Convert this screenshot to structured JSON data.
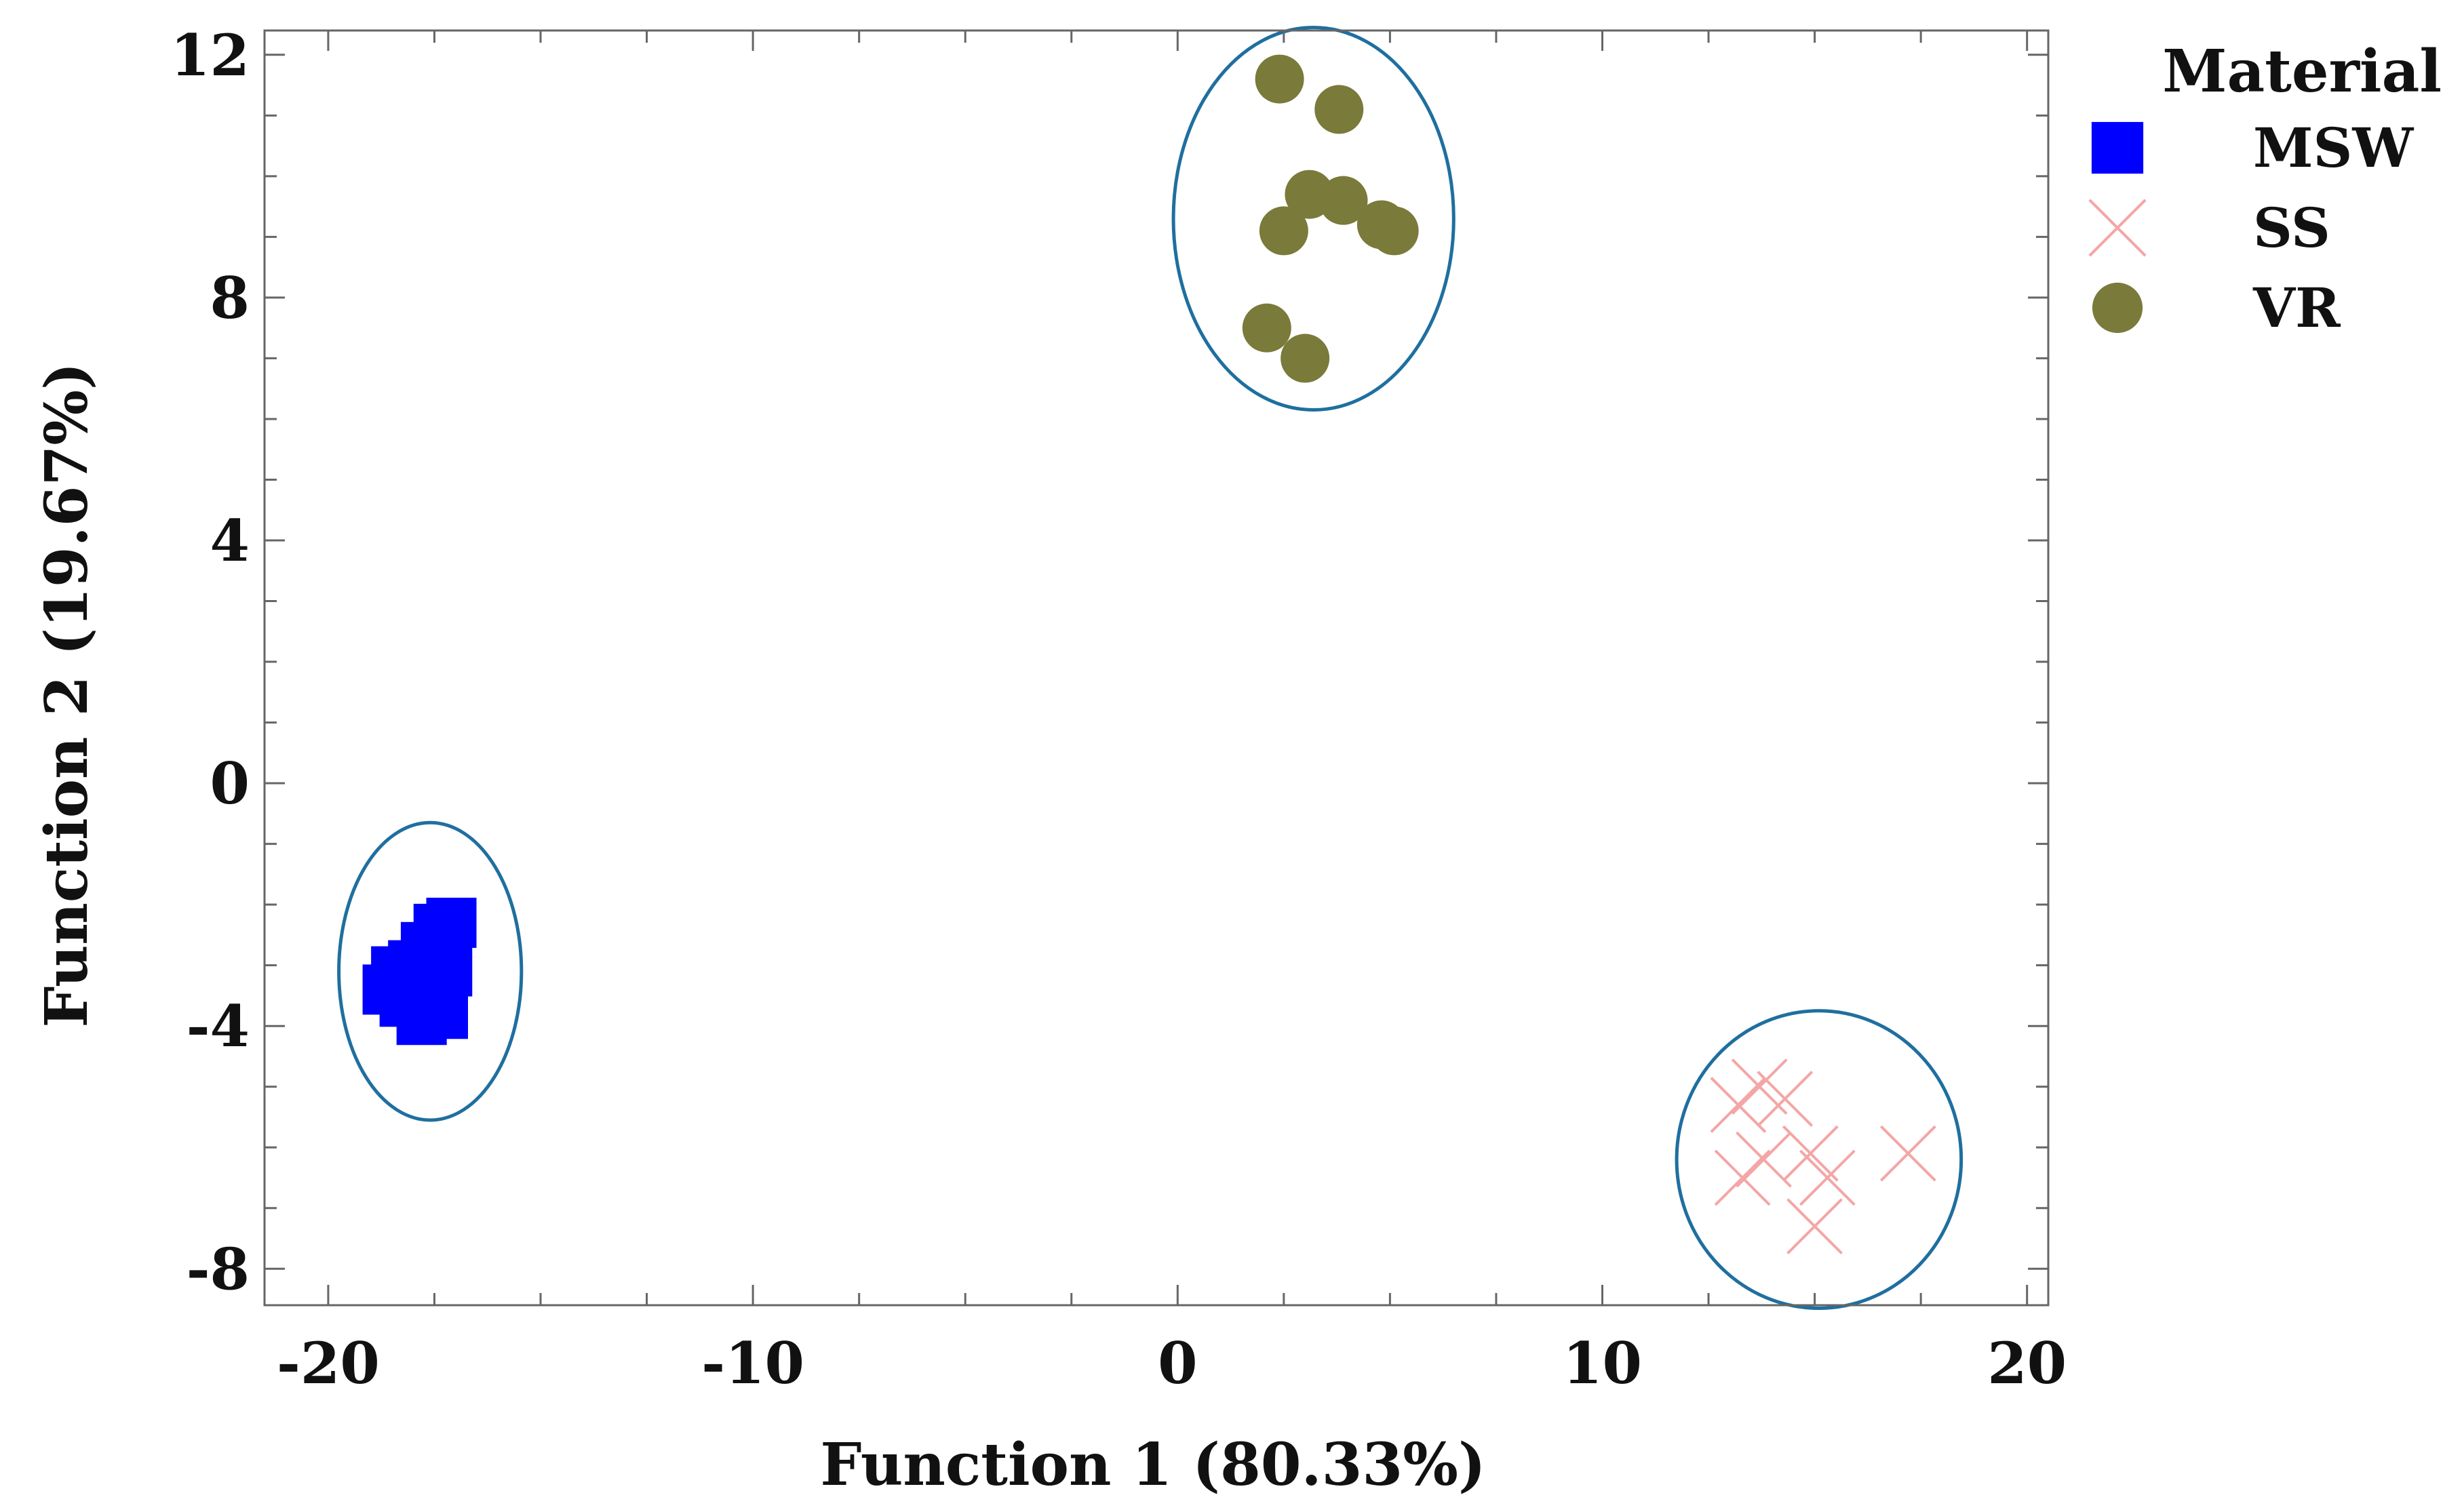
{
  "chart_data": {
    "type": "scatter",
    "title": "",
    "xlabel": "Function 1 (80.33%)",
    "ylabel": "Function 2 (19.67%)",
    "xlim": [
      -21.5,
      20.5
    ],
    "ylim": [
      -8.6,
      12.4
    ],
    "xticks": [
      -20,
      -10,
      0,
      10,
      20
    ],
    "xtick_labels": [
      "-20",
      "-10",
      "0",
      "10",
      "20"
    ],
    "yticks": [
      -8,
      -4,
      0,
      4,
      8,
      12
    ],
    "ytick_labels": [
      "-8",
      "-4",
      "0",
      "4",
      "8",
      "12"
    ],
    "x_minor_step": 2.5,
    "y_minor_step": 1,
    "grid": false,
    "legend": {
      "title": "Material",
      "position": "outside-right",
      "entries": [
        "MSW",
        "SS",
        "VR"
      ]
    },
    "series": [
      {
        "name": "MSW",
        "marker": "square",
        "color": "#0000ff",
        "points": [
          [
            -18.6,
            -3.4
          ],
          [
            -18.4,
            -3.1
          ],
          [
            -18.2,
            -3.6
          ],
          [
            -18.0,
            -3.0
          ],
          [
            -17.8,
            -3.9
          ],
          [
            -17.7,
            -2.7
          ],
          [
            -17.6,
            -3.4
          ],
          [
            -17.4,
            -2.4
          ],
          [
            -17.2,
            -3.1
          ],
          [
            -17.1,
            -2.3
          ],
          [
            -17.3,
            -3.8
          ]
        ]
      },
      {
        "name": "SS",
        "marker": "x",
        "color": "#f4a6a6",
        "points": [
          [
            13.2,
            -5.3
          ],
          [
            13.7,
            -5.0
          ],
          [
            14.3,
            -5.2
          ],
          [
            13.3,
            -6.5
          ],
          [
            13.8,
            -6.2
          ],
          [
            14.9,
            -6.1
          ],
          [
            15.3,
            -6.5
          ],
          [
            15.0,
            -7.3
          ],
          [
            17.2,
            -6.1
          ]
        ]
      },
      {
        "name": "VR",
        "marker": "circle",
        "color": "#7a7a3a",
        "points": [
          [
            2.4,
            11.6
          ],
          [
            3.8,
            11.1
          ],
          [
            3.1,
            9.7
          ],
          [
            3.9,
            9.6
          ],
          [
            2.5,
            9.1
          ],
          [
            4.8,
            9.2
          ],
          [
            5.1,
            9.1
          ],
          [
            2.1,
            7.5
          ],
          [
            3.0,
            7.0
          ]
        ]
      }
    ],
    "annotations": [
      {
        "type": "ellipse",
        "group": "MSW",
        "cx": -17.6,
        "cy": -3.1,
        "rx": 2.15,
        "ry": 2.45,
        "color": "#1f6f9f"
      },
      {
        "type": "ellipse",
        "group": "VR",
        "cx": 3.2,
        "cy": 9.3,
        "rx": 3.3,
        "ry": 3.15,
        "color": "#1f6f9f"
      },
      {
        "type": "ellipse",
        "group": "SS",
        "cx": 15.1,
        "cy": -6.2,
        "rx": 3.35,
        "ry": 2.45,
        "color": "#1f6f9f"
      }
    ]
  }
}
